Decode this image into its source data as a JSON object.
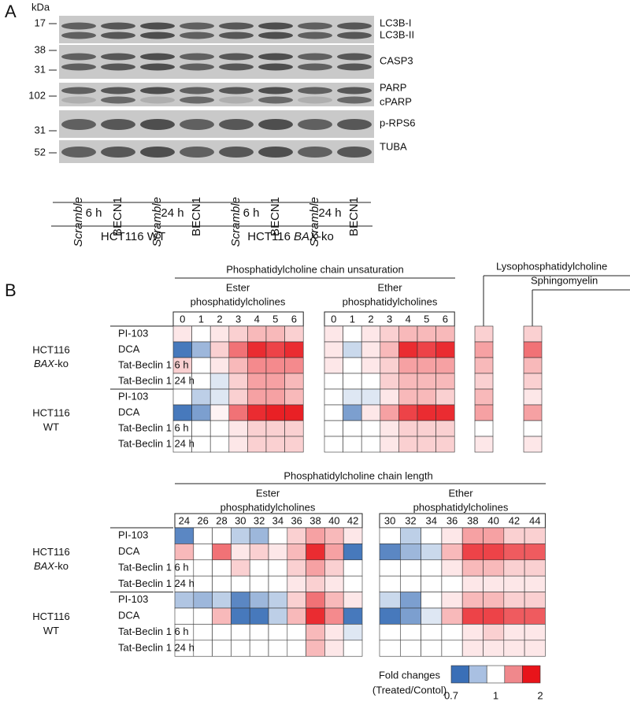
{
  "panel_a": {
    "label": "A",
    "unit": "kDa",
    "blots": [
      {
        "markers": [
          17
        ],
        "labels": [
          "LC3B-I",
          "LC3B-II"
        ]
      },
      {
        "markers": [
          38,
          31
        ],
        "labels": [
          "CASP3"
        ]
      },
      {
        "markers": [
          102
        ],
        "labels": [
          "PARP",
          "cPARP"
        ]
      },
      {
        "markers": [
          31
        ],
        "labels": [
          "p-RPS6"
        ]
      },
      {
        "markers": [
          52
        ],
        "labels": [
          "TUBA"
        ]
      }
    ],
    "lanes": [
      "Scramble",
      "BECN1",
      "Scramble",
      "BECN1",
      "Scramble",
      "BECN1",
      "Scramble",
      "BECN1"
    ],
    "timepoints": [
      "6 h",
      "24 h",
      "6 h",
      "24 h"
    ],
    "groups": [
      {
        "prefix": "HCT116 WT"
      },
      {
        "prefix": "HCT116",
        "italic": "BAX",
        "suffix": "-ko"
      }
    ]
  },
  "panel_b": {
    "label": "B",
    "row_groups": [
      {
        "line1": "HCT116",
        "italic": "BAX",
        "suffix": "-ko"
      },
      {
        "line1": "HCT116",
        "line2": "WT"
      }
    ],
    "row_labels": [
      "PI-103",
      "DCA",
      "Tat-Beclin 1 6 h",
      "Tat-Beclin 1 24 h"
    ],
    "unsaturation": {
      "title": "Phosphatidylcholine chain unsaturation",
      "ester": {
        "title": [
          "Ester",
          "phosphatidylcholines"
        ],
        "columns": [
          0,
          1,
          2,
          3,
          4,
          5,
          6
        ],
        "values": [
          [
            1.1,
            1.0,
            1.1,
            1.2,
            1.3,
            1.3,
            1.2
          ],
          [
            0.72,
            0.85,
            1.2,
            1.6,
            1.9,
            1.8,
            1.9
          ],
          [
            1.2,
            1.0,
            1.1,
            1.3,
            1.5,
            1.5,
            1.5
          ],
          [
            1.0,
            1.0,
            0.95,
            1.2,
            1.4,
            1.4,
            1.3
          ],
          [
            1.0,
            0.9,
            0.95,
            1.2,
            1.4,
            1.4,
            1.3
          ],
          [
            0.72,
            0.8,
            1.05,
            1.6,
            1.9,
            1.95,
            1.95
          ],
          [
            1.0,
            1.0,
            1.0,
            1.1,
            1.2,
            1.2,
            1.2
          ],
          [
            1.0,
            1.0,
            1.0,
            1.1,
            1.2,
            1.2,
            1.2
          ]
        ]
      },
      "ether": {
        "title": [
          "Ether",
          "phosphatidylcholines"
        ],
        "columns": [
          0,
          1,
          2,
          3,
          4,
          5,
          6
        ],
        "values": [
          [
            1.1,
            1.0,
            1.1,
            1.2,
            1.3,
            1.3,
            1.3
          ],
          [
            1.1,
            0.92,
            1.1,
            1.3,
            1.9,
            1.8,
            1.9
          ],
          [
            1.1,
            1.0,
            1.1,
            1.2,
            1.4,
            1.4,
            1.4
          ],
          [
            1.0,
            1.0,
            1.0,
            1.2,
            1.3,
            1.3,
            1.3
          ],
          [
            1.0,
            0.95,
            0.95,
            1.1,
            1.3,
            1.3,
            1.2
          ],
          [
            1.0,
            0.8,
            1.1,
            1.4,
            1.8,
            1.9,
            1.9
          ],
          [
            1.0,
            1.0,
            1.0,
            1.1,
            1.2,
            1.2,
            1.2
          ],
          [
            1.0,
            1.0,
            1.0,
            1.1,
            1.2,
            1.2,
            1.2
          ]
        ]
      },
      "lyso": {
        "title": "Lysophosphatidylcholine",
        "values": [
          1.2,
          1.4,
          1.3,
          1.2,
          1.3,
          1.4,
          1.0,
          1.1
        ]
      },
      "sphingo": {
        "title": "Sphingomyelin",
        "values": [
          1.2,
          1.6,
          1.3,
          1.2,
          1.1,
          1.4,
          1.0,
          1.1
        ]
      }
    },
    "length": {
      "title": "Phosphatidylcholine chain length",
      "ester": {
        "title": [
          "Ester",
          "phosphatidylcholines"
        ],
        "columns": [
          24,
          26,
          28,
          30,
          32,
          34,
          36,
          38,
          40,
          42
        ],
        "values": [
          [
            0.75,
            1.0,
            1.0,
            0.9,
            0.85,
            1.0,
            1.2,
            1.4,
            1.3,
            1.1
          ],
          [
            1.3,
            1.0,
            1.6,
            1.1,
            1.2,
            1.1,
            1.3,
            1.9,
            1.4,
            0.72
          ],
          [
            1.0,
            1.0,
            1.0,
            1.2,
            1.0,
            1.0,
            1.2,
            1.4,
            1.2,
            1.0
          ],
          [
            1.0,
            1.0,
            1.0,
            1.0,
            1.0,
            1.0,
            1.1,
            1.2,
            1.1,
            1.0
          ],
          [
            0.88,
            0.85,
            0.9,
            0.75,
            0.85,
            0.9,
            1.2,
            1.6,
            1.3,
            1.1
          ],
          [
            1.0,
            1.0,
            1.3,
            0.72,
            0.72,
            0.9,
            1.3,
            1.9,
            1.5,
            0.72
          ],
          [
            1.0,
            1.0,
            1.0,
            1.0,
            1.0,
            1.0,
            1.0,
            1.3,
            1.1,
            0.95
          ],
          [
            1.0,
            1.0,
            1.0,
            1.0,
            1.0,
            1.0,
            1.0,
            1.3,
            1.1,
            1.0
          ]
        ]
      },
      "ether": {
        "title": [
          "Ether",
          "phosphatidylcholines"
        ],
        "columns": [
          30,
          32,
          34,
          36,
          38,
          40,
          42,
          44
        ],
        "values": [
          [
            1.0,
            0.9,
            1.0,
            1.1,
            1.4,
            1.4,
            1.2,
            1.2
          ],
          [
            0.75,
            0.85,
            0.92,
            1.3,
            1.8,
            1.8,
            1.7,
            1.7
          ],
          [
            1.0,
            1.0,
            1.0,
            1.1,
            1.3,
            1.3,
            1.2,
            1.2
          ],
          [
            1.0,
            1.0,
            1.0,
            1.0,
            1.1,
            1.1,
            1.1,
            1.1
          ],
          [
            0.92,
            0.8,
            1.0,
            1.1,
            1.3,
            1.3,
            1.2,
            1.2
          ],
          [
            0.72,
            0.8,
            0.95,
            1.3,
            1.8,
            1.8,
            1.7,
            1.7
          ],
          [
            1.0,
            1.0,
            1.0,
            1.0,
            1.1,
            1.2,
            1.1,
            1.1
          ],
          [
            1.0,
            1.0,
            1.0,
            1.0,
            1.1,
            1.1,
            1.1,
            1.1
          ]
        ]
      }
    },
    "legend": {
      "title": "Fold changes",
      "subtitle": "(Treated/Contol)",
      "colors": [
        "#3a6fb7",
        "#a9c0e2",
        "#ffffff",
        "#f0888c",
        "#e8141a"
      ],
      "ticks": [
        0.7,
        1,
        2
      ]
    }
  }
}
